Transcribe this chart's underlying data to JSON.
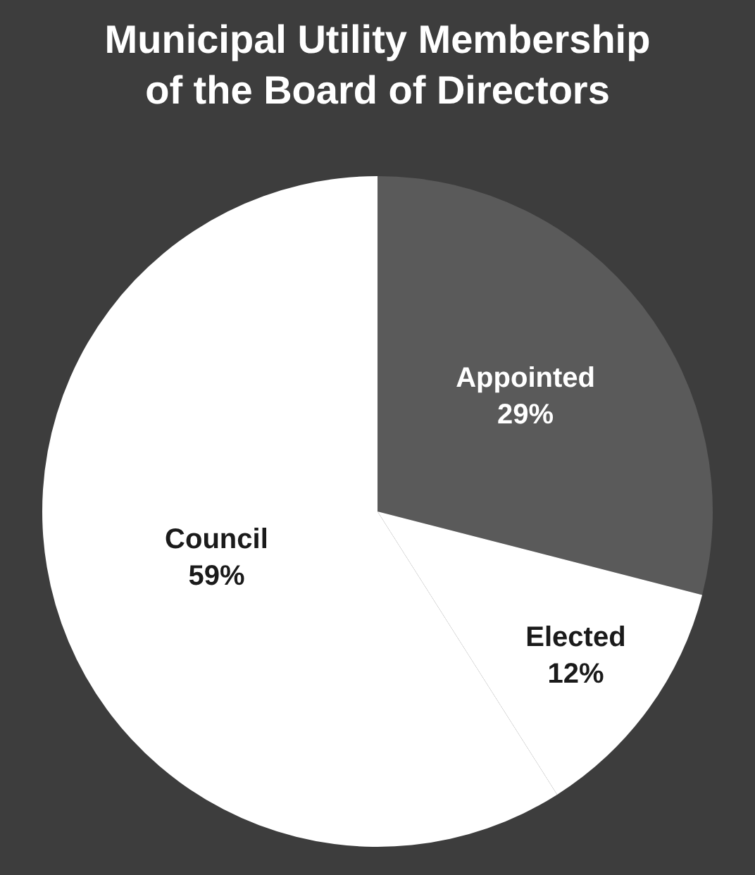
{
  "chart_data": {
    "type": "pie",
    "title": "Municipal Utility Membership of the Board of Directors",
    "categories": [
      "Appointed",
      "Elected",
      "Council"
    ],
    "values": [
      29,
      12,
      59
    ],
    "value_labels": [
      "29%",
      "12%",
      "59%"
    ],
    "colors": [
      "#5a5a5a",
      "#ffffff",
      "#ffffff"
    ],
    "legend": false
  }
}
